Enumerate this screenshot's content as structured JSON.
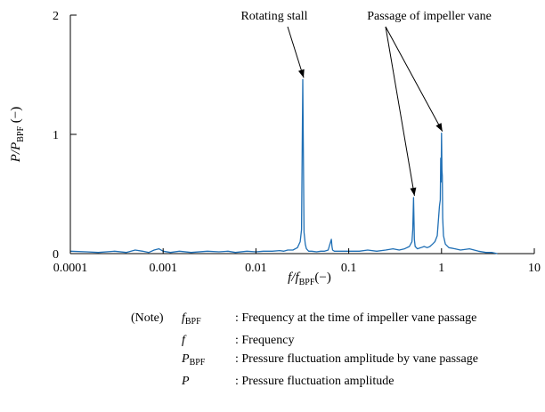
{
  "chart_data": {
    "type": "line",
    "title": "",
    "xlabel": "f/f_BPF(−)",
    "ylabel": "P/P_BPF (−)",
    "x_scale": "log",
    "xlim": [
      0.0001,
      10
    ],
    "ylim": [
      0,
      2
    ],
    "x_ticks": [
      {
        "value": 0.0001,
        "label": "0.0001"
      },
      {
        "value": 0.001,
        "label": "0.001"
      },
      {
        "value": 0.01,
        "label": "0.01"
      },
      {
        "value": 0.1,
        "label": "0.1"
      },
      {
        "value": 1,
        "label": "1"
      },
      {
        "value": 10,
        "label": "10"
      }
    ],
    "y_ticks": [
      {
        "value": 0,
        "label": "0"
      },
      {
        "value": 1,
        "label": "1"
      },
      {
        "value": 2,
        "label": "2"
      }
    ],
    "grid": false,
    "color": "#1f6fb5",
    "series": [
      {
        "x": [
          0.0001,
          0.00015,
          0.0002,
          0.0003,
          0.0004,
          0.0005,
          0.0006,
          0.0007,
          0.0008,
          0.0009,
          0.001,
          0.0012,
          0.0015,
          0.002,
          0.003,
          0.004,
          0.005,
          0.006,
          0.008,
          0.01,
          0.012,
          0.015,
          0.018,
          0.02,
          0.022,
          0.025,
          0.028,
          0.03,
          0.031,
          0.032,
          0.033,
          0.034,
          0.035,
          0.037,
          0.04,
          0.045,
          0.05,
          0.055,
          0.06,
          0.065,
          0.066,
          0.067,
          0.07,
          0.08,
          0.1,
          0.13,
          0.16,
          0.2,
          0.25,
          0.3,
          0.35,
          0.4,
          0.45,
          0.48,
          0.49,
          0.5,
          0.51,
          0.52,
          0.55,
          0.6,
          0.65,
          0.7,
          0.75,
          0.8,
          0.85,
          0.9,
          0.93,
          0.95,
          0.97,
          0.98,
          0.99,
          1.0,
          1.01,
          1.02,
          1.03,
          1.05,
          1.07,
          1.1,
          1.2,
          1.4,
          1.6,
          2.0,
          2.5,
          3.0,
          3.5,
          4.0
        ],
        "y": [
          0.02,
          0.015,
          0.01,
          0.02,
          0.01,
          0.03,
          0.02,
          0.01,
          0.03,
          0.04,
          0.02,
          0.01,
          0.02,
          0.01,
          0.02,
          0.015,
          0.02,
          0.01,
          0.02,
          0.015,
          0.02,
          0.02,
          0.025,
          0.02,
          0.03,
          0.03,
          0.05,
          0.1,
          0.2,
          1.46,
          0.18,
          0.08,
          0.04,
          0.02,
          0.02,
          0.015,
          0.02,
          0.02,
          0.03,
          0.12,
          0.06,
          0.03,
          0.02,
          0.02,
          0.02,
          0.02,
          0.03,
          0.02,
          0.03,
          0.04,
          0.03,
          0.04,
          0.06,
          0.1,
          0.2,
          0.47,
          0.12,
          0.06,
          0.04,
          0.05,
          0.06,
          0.05,
          0.06,
          0.08,
          0.1,
          0.15,
          0.3,
          0.4,
          0.45,
          0.8,
          0.6,
          1.01,
          0.7,
          0.65,
          0.3,
          0.15,
          0.12,
          0.08,
          0.05,
          0.04,
          0.03,
          0.04,
          0.02,
          0.01,
          0.01,
          0.0
        ]
      }
    ],
    "annotations": [
      {
        "text": "Rotating stall",
        "points_to": [
          [
            0.032,
            1.46
          ]
        ]
      },
      {
        "text": "Passage of impeller vane",
        "points_to": [
          [
            0.5,
            0.47
          ],
          [
            1.0,
            1.01
          ]
        ]
      }
    ]
  },
  "notes": [
    {
      "prefix": "(Note)",
      "symbol": "f",
      "sub": "BPF",
      "desc": ": Frequency at the time of impeller vane passage"
    },
    {
      "prefix": "",
      "symbol": "f",
      "sub": "",
      "desc": ": Frequency"
    },
    {
      "prefix": "",
      "symbol": "P",
      "sub": "BPF",
      "desc": ": Pressure fluctuation amplitude by vane passage"
    },
    {
      "prefix": "",
      "symbol": "P",
      "sub": "",
      "desc": ": Pressure fluctuation amplitude"
    }
  ]
}
